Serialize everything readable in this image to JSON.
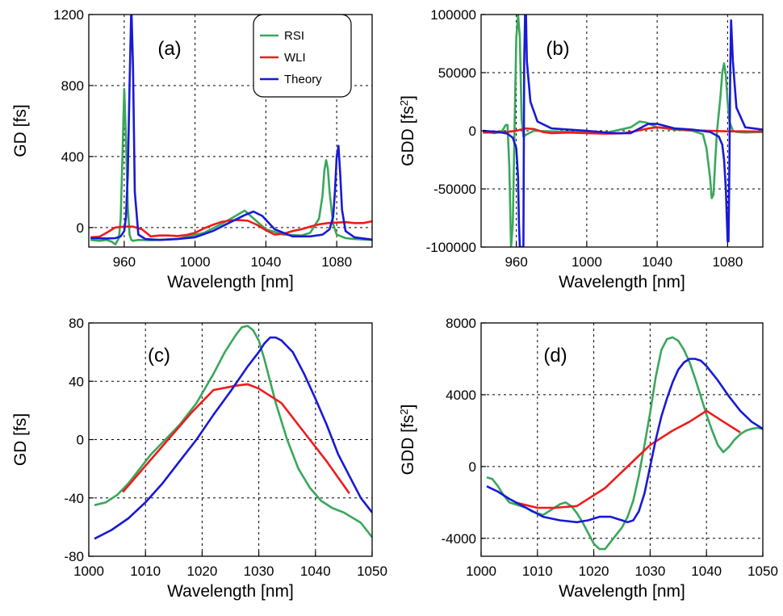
{
  "colors": {
    "RSI": "#3aa75c",
    "WLI": "#ee1c1c",
    "Theory": "#1919d6"
  },
  "chart_data": [
    {
      "id": "a",
      "type": "line",
      "panel_label": "(a)",
      "xlabel": "Wavelength [nm]",
      "ylabel": "GD [fs]",
      "xlim": [
        940,
        1100
      ],
      "ylim": [
        -110,
        1200
      ],
      "xticks": [
        960,
        1000,
        1040,
        1080
      ],
      "yticks": [
        0,
        400,
        800,
        1200
      ],
      "grid": true,
      "legend": "top-right",
      "series": [
        {
          "name": "RSI",
          "x": [
            941,
            946,
            950,
            953,
            955,
            957,
            958,
            959,
            960,
            961,
            962,
            963,
            964,
            965,
            968,
            975,
            990,
            1005,
            1015,
            1022,
            1028,
            1032,
            1040,
            1050,
            1060,
            1065,
            1070,
            1072,
            1073,
            1074,
            1075,
            1076,
            1078,
            1080,
            1085,
            1090,
            1100
          ],
          "y": [
            -70,
            -75,
            -70,
            -80,
            -95,
            -60,
            50,
            400,
            780,
            500,
            120,
            -40,
            -70,
            -75,
            -70,
            -72,
            -65,
            -30,
            20,
            60,
            95,
            60,
            -10,
            -40,
            -45,
            -30,
            50,
            180,
            320,
            380,
            330,
            200,
            20,
            -40,
            -60,
            -65,
            -70
          ]
        },
        {
          "name": "WLI",
          "x": [
            941,
            946,
            950,
            955,
            960,
            965,
            970,
            975,
            980,
            985,
            990,
            995,
            1000,
            1005,
            1010,
            1015,
            1020,
            1025,
            1030,
            1035,
            1040,
            1045,
            1050,
            1055,
            1060,
            1065,
            1070,
            1075,
            1080,
            1085,
            1090,
            1095,
            1100
          ],
          "y": [
            -55,
            -52,
            -30,
            0,
            5,
            5,
            -10,
            -50,
            -45,
            -45,
            -48,
            -42,
            -30,
            -5,
            15,
            32,
            40,
            42,
            38,
            15,
            -15,
            -40,
            -35,
            -20,
            -10,
            5,
            18,
            25,
            28,
            30,
            25,
            25,
            35
          ]
        },
        {
          "name": "Theory",
          "x": [
            941,
            950,
            955,
            958,
            960,
            961,
            962,
            963,
            964,
            965,
            966,
            968,
            972,
            980,
            990,
            1000,
            1010,
            1020,
            1028,
            1033,
            1038,
            1045,
            1055,
            1065,
            1072,
            1076,
            1078,
            1079,
            1080,
            1081,
            1082,
            1083,
            1085,
            1090,
            1100
          ],
          "y": [
            -60,
            -62,
            -60,
            -50,
            -20,
            60,
            300,
            800,
            1250,
            900,
            200,
            -40,
            -65,
            -70,
            -65,
            -55,
            -20,
            30,
            70,
            90,
            65,
            -10,
            -50,
            -50,
            -40,
            -10,
            60,
            200,
            400,
            460,
            300,
            100,
            -20,
            -55,
            -68
          ]
        }
      ]
    },
    {
      "id": "b",
      "type": "line",
      "panel_label": "(b)",
      "xlabel": "Wavelength [nm]",
      "ylabel": "GDD [fs2]",
      "xlim": [
        940,
        1100
      ],
      "ylim": [
        -100000,
        100000
      ],
      "xticks": [
        960,
        1000,
        1040,
        1080
      ],
      "yticks": [
        -100000,
        -50000,
        0,
        50000,
        100000
      ],
      "grid": true,
      "series": [
        {
          "name": "RSI",
          "x": [
            941,
            948,
            952,
            954,
            955,
            956,
            957,
            958,
            959,
            960,
            961,
            962,
            963,
            964,
            966,
            970,
            990,
            1010,
            1025,
            1030,
            1034,
            1040,
            1050,
            1060,
            1066,
            1068,
            1070,
            1071,
            1072,
            1073,
            1074,
            1076,
            1077,
            1078,
            1079,
            1080,
            1081,
            1083,
            1085,
            1090,
            1100
          ],
          "y": [
            -1000,
            -2000,
            0,
            5000,
            5000,
            -30000,
            -100000,
            -80000,
            0,
            80000,
            100000,
            80000,
            10000,
            -5000,
            -3000,
            0,
            -1000,
            -2000,
            3000,
            8000,
            7000,
            3000,
            1000,
            0,
            -3000,
            -15000,
            -40000,
            -58000,
            -55000,
            -25000,
            0,
            30000,
            50000,
            58000,
            48000,
            25000,
            8000,
            0,
            -1000,
            -1500,
            -1000
          ]
        },
        {
          "name": "WLI",
          "x": [
            941,
            950,
            955,
            960,
            965,
            970,
            975,
            980,
            990,
            1000,
            1010,
            1020,
            1025,
            1030,
            1035,
            1040,
            1045,
            1050,
            1060,
            1070,
            1080,
            1090,
            1100
          ],
          "y": [
            -1500,
            -1500,
            -1000,
            0,
            2000,
            1500,
            -1000,
            -2000,
            -1500,
            -2000,
            -2500,
            -2200,
            -1200,
            500,
            2000,
            3000,
            2500,
            1500,
            500,
            0,
            -500,
            -500,
            -700
          ]
        },
        {
          "name": "Theory",
          "x": [
            941,
            950,
            955,
            958,
            960,
            961,
            961.5,
            962,
            962.5,
            963,
            964,
            964.5,
            965,
            965.5,
            966,
            968,
            972,
            980,
            1000,
            1015,
            1025,
            1030,
            1035,
            1040,
            1045,
            1050,
            1060,
            1070,
            1075,
            1077,
            1078,
            1079,
            1080,
            1080.5,
            1081,
            1081.5,
            1082,
            1083,
            1085,
            1090,
            1100
          ],
          "y": [
            0,
            -1000,
            -2500,
            -6000,
            -15000,
            -40000,
            -80000,
            -100000,
            -100000,
            -100000,
            -100000,
            60000,
            100000,
            100000,
            60000,
            25000,
            8000,
            2000,
            0,
            -2000,
            -2000,
            2000,
            6000,
            6000,
            4000,
            2000,
            1000,
            -1000,
            -5000,
            -12000,
            -25000,
            -50000,
            -95000,
            -95000,
            -30000,
            50000,
            95000,
            60000,
            20000,
            3000,
            1000
          ]
        }
      ]
    },
    {
      "id": "c",
      "type": "line",
      "panel_label": "(c)",
      "xlabel": "Wavelength [nm]",
      "ylabel": "GD [fs]",
      "xlim": [
        1000,
        1050
      ],
      "ylim": [
        -80,
        80
      ],
      "xticks": [
        1000,
        1010,
        1020,
        1030,
        1040,
        1050
      ],
      "yticks": [
        -80,
        -40,
        0,
        40,
        80
      ],
      "grid": true,
      "series": [
        {
          "name": "RSI",
          "x": [
            1001,
            1003,
            1005,
            1007,
            1009,
            1011,
            1013,
            1016,
            1019,
            1022,
            1024,
            1026,
            1027,
            1028,
            1029,
            1030,
            1031,
            1032,
            1033,
            1035,
            1037,
            1039,
            1041,
            1043,
            1045,
            1048,
            1050
          ],
          "y": [
            -45,
            -43,
            -38,
            -30,
            -20,
            -10,
            -2,
            10,
            25,
            45,
            60,
            72,
            77,
            78,
            75,
            68,
            55,
            40,
            25,
            0,
            -20,
            -33,
            -42,
            -47,
            -50,
            -57,
            -67
          ]
        },
        {
          "name": "WLI",
          "x": [
            1006,
            1010,
            1014,
            1018,
            1022,
            1026,
            1028,
            1030,
            1034,
            1038,
            1042,
            1046
          ],
          "y": [
            -36,
            -18,
            0,
            18,
            34,
            37,
            38,
            35,
            25,
            5,
            -15,
            -37
          ]
        },
        {
          "name": "Theory",
          "x": [
            1001,
            1004,
            1007,
            1010,
            1013,
            1016,
            1019,
            1022,
            1025,
            1028,
            1030,
            1031,
            1032,
            1033,
            1034,
            1036,
            1038,
            1040,
            1042,
            1044,
            1046,
            1048,
            1050
          ],
          "y": [
            -68,
            -62,
            -54,
            -43,
            -30,
            -15,
            0,
            17,
            33,
            50,
            60,
            66,
            70,
            70,
            68,
            60,
            45,
            28,
            10,
            -10,
            -25,
            -40,
            -50
          ]
        }
      ]
    },
    {
      "id": "d",
      "type": "line",
      "panel_label": "(d)",
      "xlabel": "Wavelength [nm]",
      "ylabel": "GDD [fs2]",
      "xlim": [
        1000,
        1050
      ],
      "ylim": [
        -5000,
        8000
      ],
      "xticks": [
        1000,
        1010,
        1020,
        1030,
        1040,
        1050
      ],
      "yticks": [
        -4000,
        0,
        4000,
        8000
      ],
      "grid": true,
      "series": [
        {
          "name": "RSI",
          "x": [
            1001,
            1002,
            1003,
            1004,
            1005,
            1006,
            1007,
            1008,
            1009,
            1010,
            1011,
            1012,
            1013,
            1014,
            1015,
            1016,
            1017,
            1018,
            1019,
            1020,
            1021,
            1022,
            1023,
            1024,
            1025,
            1026,
            1027,
            1028,
            1029,
            1030,
            1031,
            1032,
            1033,
            1034,
            1035,
            1036,
            1037,
            1038,
            1039,
            1040,
            1041,
            1042,
            1043,
            1044,
            1045,
            1046,
            1047,
            1048,
            1049,
            1050
          ],
          "y": [
            -600,
            -700,
            -1100,
            -1600,
            -2000,
            -2100,
            -2200,
            -2300,
            -2500,
            -2600,
            -2700,
            -2500,
            -2300,
            -2100,
            -2000,
            -2200,
            -2600,
            -3100,
            -3700,
            -4300,
            -4600,
            -4600,
            -4200,
            -3800,
            -3400,
            -2800,
            -1900,
            -500,
            1200,
            3000,
            5000,
            6500,
            7100,
            7200,
            7000,
            6500,
            5800,
            4900,
            3900,
            2900,
            2000,
            1200,
            800,
            1100,
            1500,
            1800,
            2000,
            2100,
            2150,
            2100
          ]
        },
        {
          "name": "WLI",
          "x": [
            1006,
            1010,
            1013,
            1017,
            1022,
            1025,
            1028,
            1030,
            1034,
            1037,
            1040,
            1043,
            1046
          ],
          "y": [
            -2000,
            -2300,
            -2300,
            -2200,
            -1200,
            -300,
            600,
            1200,
            2000,
            2500,
            3100,
            2500,
            1900
          ]
        },
        {
          "name": "Theory",
          "x": [
            1001,
            1003,
            1005,
            1008,
            1011,
            1014,
            1017,
            1019,
            1021,
            1023,
            1025,
            1026,
            1027,
            1028,
            1029,
            1030,
            1031,
            1032,
            1033,
            1034,
            1035,
            1036,
            1037,
            1038,
            1039,
            1040,
            1042,
            1044,
            1046,
            1048,
            1050
          ],
          "y": [
            -1100,
            -1400,
            -1800,
            -2300,
            -2800,
            -3000,
            -3100,
            -3000,
            -2800,
            -2800,
            -3000,
            -3100,
            -3000,
            -2500,
            -1500,
            0,
            1500,
            2800,
            3800,
            4700,
            5400,
            5800,
            6000,
            6000,
            5900,
            5600,
            4800,
            3900,
            3100,
            2500,
            2100
          ]
        }
      ]
    }
  ],
  "legend": {
    "entries": [
      "RSI",
      "WLI",
      "Theory"
    ]
  }
}
